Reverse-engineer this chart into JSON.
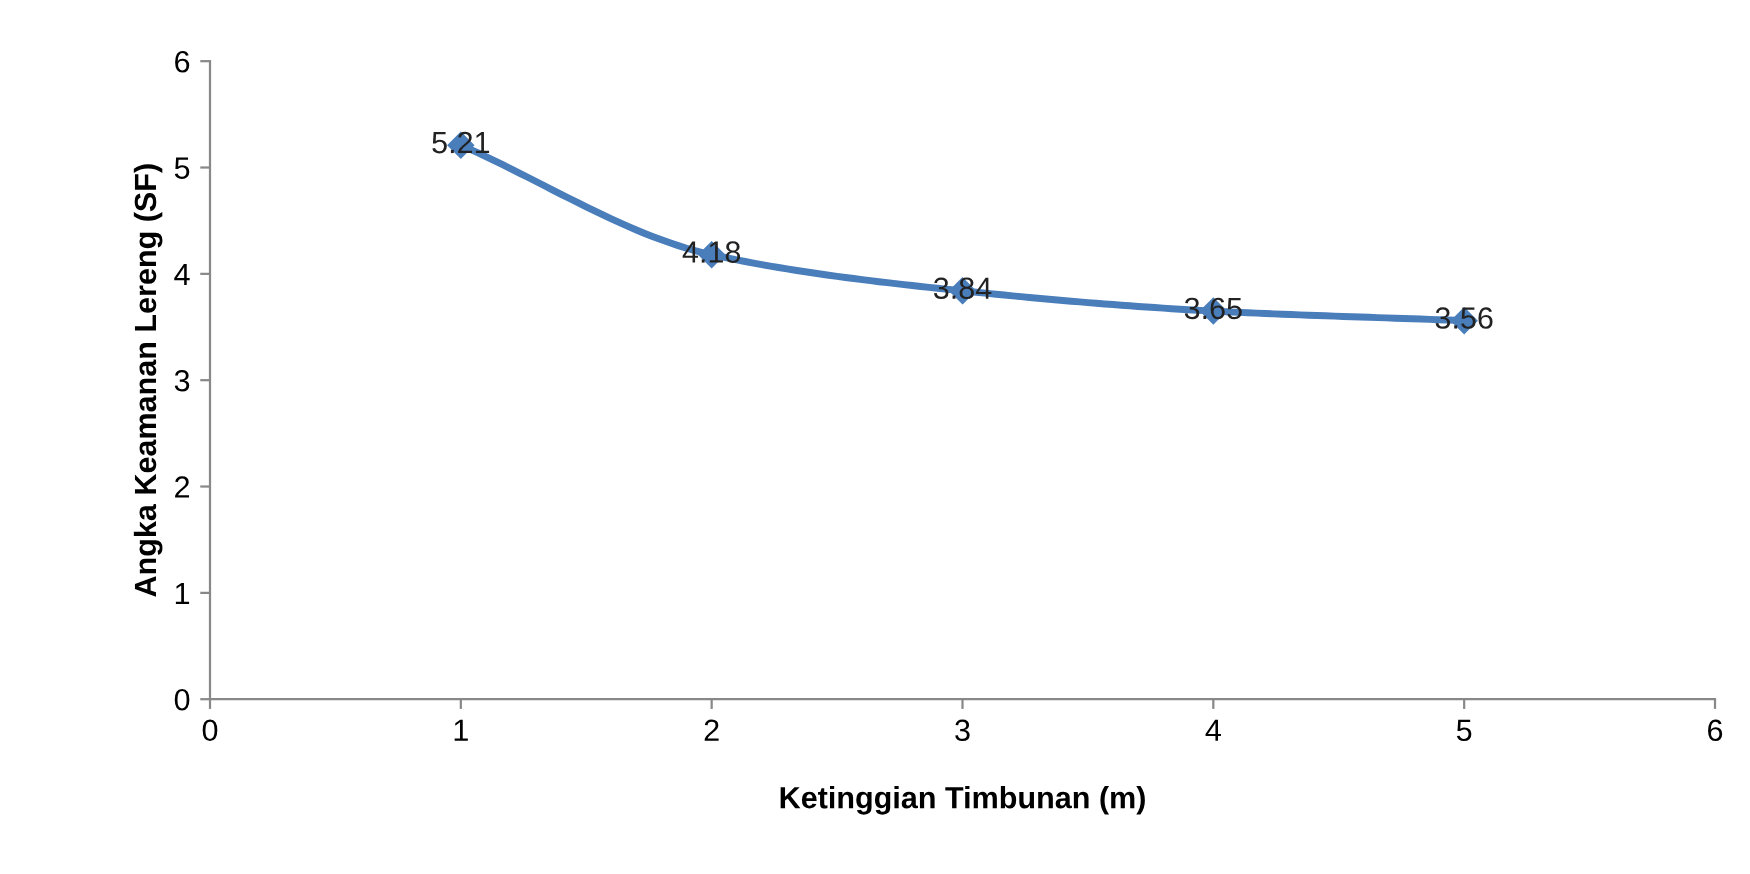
{
  "chart_data": {
    "type": "line",
    "xlabel": "Ketinggian Timbunan (m)",
    "ylabel": "Angka Keamanan Lereng (SF)",
    "x": [
      1,
      2,
      3,
      4,
      5
    ],
    "series": [
      {
        "color": "#4a7ebb",
        "values": [
          5.21,
          4.18,
          3.84,
          3.65,
          3.56
        ]
      }
    ],
    "xlim": [
      0,
      6
    ],
    "xticks": [
      0,
      1,
      2,
      3,
      4,
      5,
      6
    ],
    "ylim": [
      0,
      6
    ],
    "yticks": [
      0,
      1,
      2,
      3,
      4,
      5,
      6
    ],
    "marker": "diamond",
    "line_style": "solid",
    "data_labels": true,
    "grid": false,
    "legend": false
  }
}
